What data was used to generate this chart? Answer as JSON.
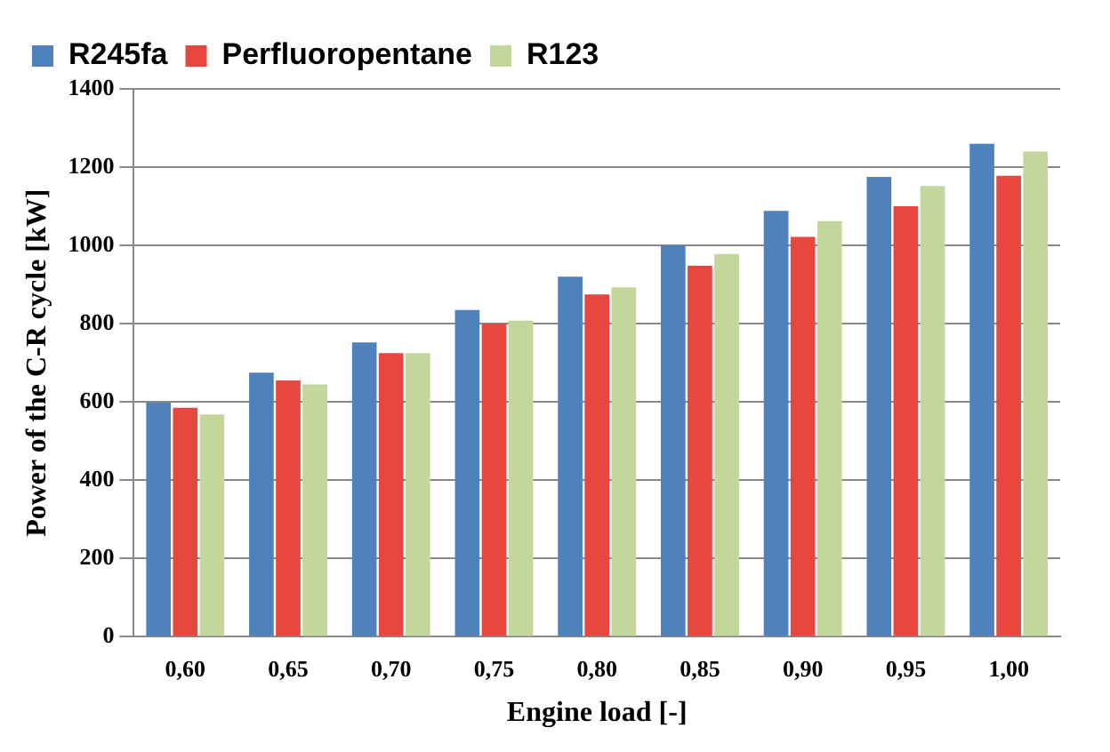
{
  "chart_data": {
    "type": "bar",
    "xlabel": "Engine load [-]",
    "ylabel": "Power of the C-R cycle [kW]",
    "categories": [
      "0,60",
      "0,65",
      "0,70",
      "0,75",
      "0,80",
      "0,85",
      "0,90",
      "0,95",
      "1,00"
    ],
    "series": [
      {
        "name": "R245fa",
        "color": "#4f81bd",
        "values": [
          598,
          675,
          752,
          835,
          920,
          1000,
          1088,
          1175,
          1260
        ]
      },
      {
        "name": "Perfluoropentane",
        "color": "#e8473f",
        "values": [
          585,
          655,
          725,
          800,
          875,
          948,
          1022,
          1100,
          1178
        ]
      },
      {
        "name": "R123",
        "color": "#c3d69b",
        "values": [
          568,
          645,
          725,
          808,
          893,
          978,
          1062,
          1152,
          1240
        ]
      }
    ],
    "ylim": [
      0,
      1400
    ],
    "yticks": [
      0,
      200,
      400,
      600,
      800,
      1000,
      1200,
      1400
    ],
    "grid": "y",
    "legend": "top left"
  }
}
